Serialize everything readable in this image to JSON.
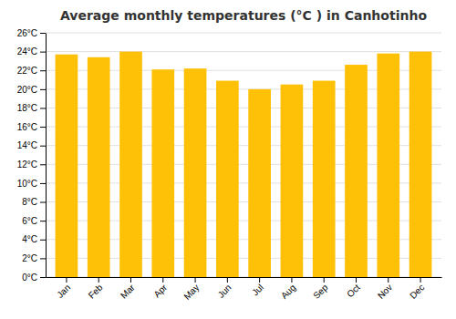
{
  "chart_data": {
    "type": "bar",
    "title": "Average monthly temperatures (°C ) in Canhotinho",
    "categories": [
      "Jan",
      "Feb",
      "Mar",
      "Apr",
      "May",
      "Jun",
      "Jul",
      "Aug",
      "Sep",
      "Oct",
      "Nov",
      "Dec"
    ],
    "values": [
      23.7,
      23.4,
      24.0,
      22.1,
      22.2,
      20.9,
      20.0,
      20.5,
      20.9,
      22.6,
      23.8,
      24.0
    ],
    "color": "#FFC107",
    "ylim": [
      0,
      26
    ],
    "yticks": [
      {
        "value": 0,
        "label": "0°C"
      },
      {
        "value": 2,
        "label": "2°C"
      },
      {
        "value": 4,
        "label": "4°C"
      },
      {
        "value": 6,
        "label": "6°C"
      },
      {
        "value": 8,
        "label": "8°C"
      },
      {
        "value": 10,
        "label": "10°C"
      },
      {
        "value": 12,
        "label": "12°C"
      },
      {
        "value": 14,
        "label": "14°C"
      },
      {
        "value": 16,
        "label": "16°C"
      },
      {
        "value": 18,
        "label": "18°C"
      },
      {
        "value": 20,
        "label": "20°C"
      },
      {
        "value": 22,
        "label": "22°C"
      },
      {
        "value": 24,
        "label": "24°C"
      },
      {
        "value": 26,
        "label": "26°C"
      }
    ],
    "grid": true
  }
}
